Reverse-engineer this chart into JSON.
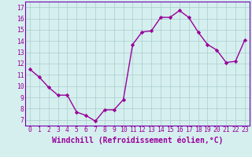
{
  "x": [
    0,
    1,
    2,
    3,
    4,
    5,
    6,
    7,
    8,
    9,
    10,
    11,
    12,
    13,
    14,
    15,
    16,
    17,
    18,
    19,
    20,
    21,
    22,
    23
  ],
  "y": [
    11.5,
    10.8,
    9.9,
    9.2,
    9.2,
    7.7,
    7.4,
    6.9,
    7.9,
    7.9,
    8.8,
    13.7,
    14.8,
    14.9,
    16.1,
    16.1,
    16.7,
    16.1,
    14.8,
    13.7,
    13.2,
    12.1,
    12.2,
    14.1
  ],
  "line_color": "#990099",
  "marker": "D",
  "marker_size": 2.2,
  "line_width": 1.0,
  "xlabel": "Windchill (Refroidissement éolien,°C)",
  "xlabel_fontsize": 7,
  "ylim": [
    6.5,
    17.5
  ],
  "xlim": [
    -0.5,
    23.5
  ],
  "yticks": [
    7,
    8,
    9,
    10,
    11,
    12,
    13,
    14,
    15,
    16,
    17
  ],
  "xticks": [
    0,
    1,
    2,
    3,
    4,
    5,
    6,
    7,
    8,
    9,
    10,
    11,
    12,
    13,
    14,
    15,
    16,
    17,
    18,
    19,
    20,
    21,
    22,
    23
  ],
  "tick_fontsize": 5.8,
  "background_color": "#d5efef",
  "grid_color": "#aacccc",
  "spine_color": "#7700aa"
}
